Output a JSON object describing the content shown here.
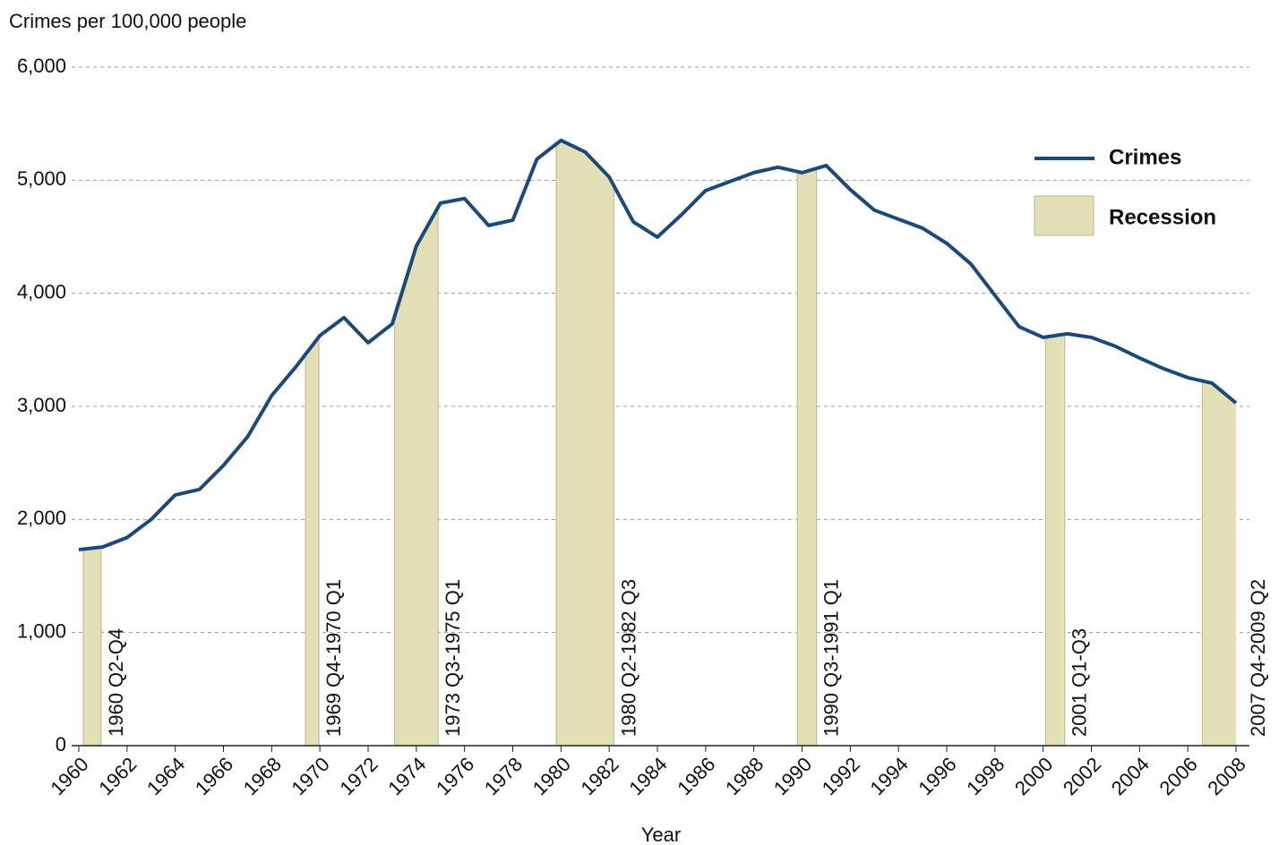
{
  "chart_data": {
    "type": "line",
    "y_label": "Crimes per 100,000 people",
    "x_label": "Year",
    "x": [
      1960,
      1961,
      1962,
      1963,
      1964,
      1965,
      1966,
      1967,
      1968,
      1969,
      1970,
      1971,
      1972,
      1973,
      1974,
      1975,
      1976,
      1977,
      1978,
      1979,
      1980,
      1981,
      1982,
      1983,
      1984,
      1985,
      1986,
      1987,
      1988,
      1989,
      1990,
      1991,
      1992,
      1993,
      1994,
      1995,
      1996,
      1997,
      1998,
      1999,
      2000,
      2001,
      2002,
      2003,
      2004,
      2005,
      2006,
      2007,
      2008
    ],
    "series": [
      {
        "name": "Crimes",
        "color": "#1b4a7a",
        "values": [
          1733,
          1757,
          1840,
          2000,
          2217,
          2265,
          2478,
          2731,
          3096,
          3349,
          3626,
          3785,
          3563,
          3729,
          4418,
          4798,
          4838,
          4600,
          4647,
          5186,
          5352,
          5250,
          5028,
          4632,
          4497,
          4695,
          4909,
          4988,
          5067,
          5115,
          5067,
          5130,
          4917,
          4735,
          4655,
          4576,
          4442,
          4260,
          3982,
          3705,
          3610,
          3642,
          3610,
          3531,
          3428,
          3333,
          3254,
          3206,
          3030
        ]
      }
    ],
    "recession_legend": "Recession",
    "recession_color": "#e3e0b7",
    "recessions": [
      {
        "label": "1960 Q2-Q4",
        "start": 1960.19,
        "end": 1960.93
      },
      {
        "label": "1969 Q4-1970 Q1",
        "start": 1969.4,
        "end": 1969.96
      },
      {
        "label": "1973 Q3-1975 Q1",
        "start": 1973.1,
        "end": 1974.9
      },
      {
        "label": "1980 Q2-1982 Q3",
        "start": 1979.8,
        "end": 1982.2
      },
      {
        "label": "1990 Q3-1991 Q1",
        "start": 1989.8,
        "end": 1990.6
      },
      {
        "label": "2001 Q1-Q3",
        "start": 2000.1,
        "end": 2000.9
      },
      {
        "label": "2007 Q4-2009 Q2",
        "start": 2006.6,
        "end": 2008.3
      }
    ],
    "xlim": [
      1960,
      2008
    ],
    "xticks": [
      1960,
      1962,
      1964,
      1966,
      1968,
      1970,
      1972,
      1974,
      1976,
      1978,
      1980,
      1982,
      1984,
      1986,
      1988,
      1990,
      1992,
      1994,
      1996,
      1998,
      2000,
      2002,
      2004,
      2006,
      2008
    ],
    "ylim": [
      0,
      6000
    ],
    "yticks": [
      0,
      {
        "value": 1000,
        "label": "1,000"
      },
      {
        "value": 2000,
        "label": "2,000"
      },
      {
        "value": 3000,
        "label": "3,000"
      },
      {
        "value": 4000,
        "label": "4,000"
      },
      {
        "value": 5000,
        "label": "5,000"
      },
      {
        "value": 6000,
        "label": "6,000"
      }
    ],
    "grid": true,
    "legend": "upper right"
  }
}
